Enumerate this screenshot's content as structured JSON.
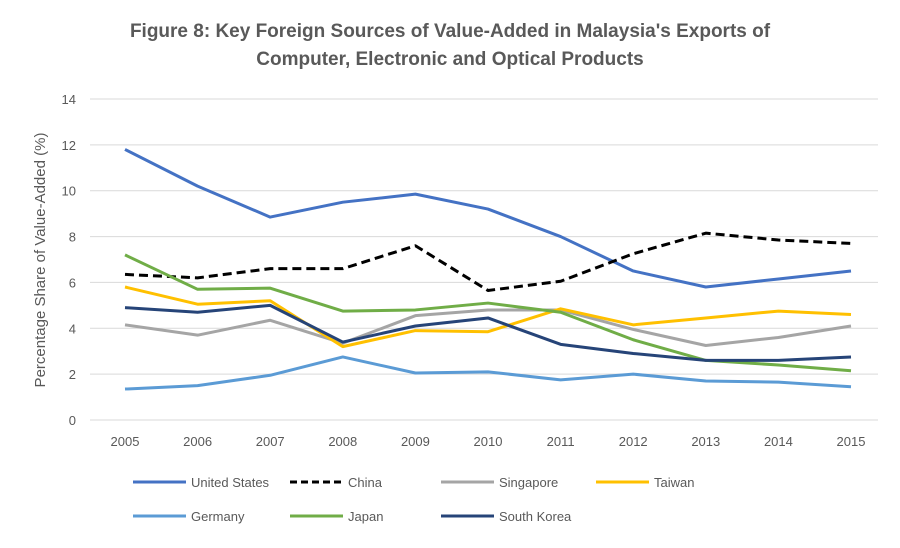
{
  "chart_data": {
    "type": "line",
    "title_line1": "Figure 8: Key Foreign Sources of Value-Added in Malaysia's Exports of",
    "title_line2": "Computer, Electronic and Optical Products",
    "xlabel": "",
    "ylabel": "Percentage Share of Value-Added (%)",
    "ylim": [
      0,
      14
    ],
    "yticks": [
      0,
      2,
      4,
      6,
      8,
      10,
      12,
      14
    ],
    "grid": true,
    "legend_position": "bottom",
    "x": [
      "2005",
      "2006",
      "2007",
      "2008",
      "2009",
      "2010",
      "2011",
      "2012",
      "2013",
      "2014",
      "2015"
    ],
    "series": [
      {
        "name": "United States",
        "color": "#4472C4",
        "dash": false,
        "values": [
          11.8,
          10.2,
          8.85,
          9.5,
          9.85,
          9.2,
          8.0,
          6.5,
          5.8,
          6.15,
          6.5
        ]
      },
      {
        "name": "China",
        "color": "#000000",
        "dash": true,
        "values": [
          6.35,
          6.2,
          6.6,
          6.6,
          7.6,
          5.65,
          6.05,
          7.25,
          8.15,
          7.85,
          7.7
        ]
      },
      {
        "name": "Singapore",
        "color": "#A5A5A5",
        "dash": false,
        "values": [
          4.15,
          3.7,
          4.35,
          3.35,
          4.55,
          4.8,
          4.8,
          3.95,
          3.25,
          3.6,
          4.1
        ]
      },
      {
        "name": "Taiwan",
        "color": "#FFC000",
        "dash": false,
        "values": [
          5.8,
          5.05,
          5.2,
          3.2,
          3.9,
          3.85,
          4.85,
          4.15,
          4.45,
          4.75,
          4.6
        ]
      },
      {
        "name": "Germany",
        "color": "#5B9BD5",
        "dash": false,
        "values": [
          1.35,
          1.5,
          1.95,
          2.75,
          2.05,
          2.1,
          1.75,
          2.0,
          1.7,
          1.65,
          1.45
        ]
      },
      {
        "name": "Japan",
        "color": "#70AD47",
        "dash": false,
        "values": [
          7.2,
          5.7,
          5.75,
          4.75,
          4.8,
          5.1,
          4.7,
          3.5,
          2.6,
          2.4,
          2.15
        ]
      },
      {
        "name": "South Korea",
        "color": "#264478",
        "dash": false,
        "values": [
          4.9,
          4.7,
          5.0,
          3.4,
          4.1,
          4.45,
          3.3,
          2.9,
          2.6,
          2.6,
          2.75
        ]
      }
    ]
  }
}
